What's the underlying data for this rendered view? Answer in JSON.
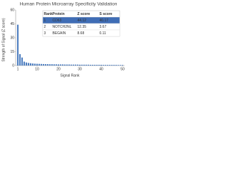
{
  "chart_data": {
    "type": "bar",
    "title": "Human Protein Microarray Specificity Validation",
    "x_label": "Signal Rank",
    "y_label": "Strength of Signal (Z score)",
    "x": [
      1,
      2,
      3,
      4,
      5,
      6,
      7,
      8,
      9,
      10,
      11,
      12,
      13,
      14,
      15,
      16,
      17,
      18,
      19,
      20,
      21,
      22,
      23,
      24,
      25,
      26,
      27,
      28,
      29,
      30,
      31,
      32,
      33,
      34,
      35,
      36,
      37,
      38,
      39,
      40,
      41,
      42,
      43,
      44,
      45,
      46,
      47,
      48,
      49,
      50
    ],
    "values": [
      44.12,
      12.35,
      8.68,
      4.2,
      3.3,
      2.8,
      2.5,
      2.2,
      2.0,
      1.9,
      1.8,
      1.7,
      1.6,
      1.5,
      1.5,
      1.4,
      1.4,
      1.3,
      1.3,
      1.2,
      1.2,
      1.2,
      1.1,
      1.1,
      1.1,
      1.0,
      1.0,
      1.0,
      1.0,
      0.9,
      0.9,
      0.9,
      0.9,
      0.9,
      0.8,
      0.8,
      0.8,
      0.8,
      0.8,
      0.8,
      0.7,
      0.7,
      0.7,
      0.7,
      0.7,
      0.7,
      0.7,
      0.6,
      0.6,
      0.6
    ],
    "color": "#4f7fc0",
    "xlim": [
      0,
      51
    ],
    "xticks": [
      1,
      10,
      20,
      30,
      40,
      50
    ],
    "ylim": [
      0,
      60
    ],
    "yticks": [
      0,
      15,
      30,
      45,
      60
    ],
    "table": {
      "columns": [
        "Rank",
        "Protein",
        "Z score",
        "S score"
      ],
      "rows": [
        [
          "1",
          "CD63",
          "44.12",
          "40.17"
        ],
        [
          "2",
          "NOTCH2NL",
          "12.35",
          "3.67"
        ],
        [
          "3",
          "BEGAIN",
          "8.68",
          "0.11"
        ]
      ]
    }
  }
}
